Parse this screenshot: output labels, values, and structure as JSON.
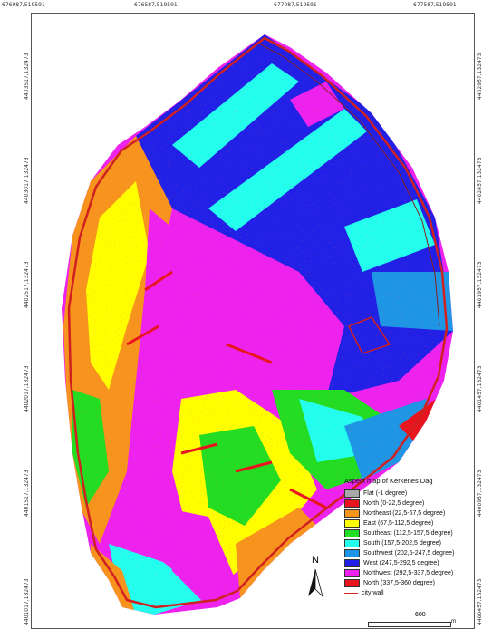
{
  "map": {
    "top_coords": [
      "676987,519591",
      "676587,519591",
      "677087,519591",
      "677587,519591"
    ],
    "left_coords": [
      "4403517,132473",
      "4403017,132473",
      "4402517,132473",
      "4402017,132473",
      "4401517,132473",
      "4401017,132473"
    ],
    "right_coords": [
      "4402957,132473",
      "4402457,132473",
      "4401957,132473",
      "4401457,132473",
      "4400957,132473",
      "4400457,132473"
    ]
  },
  "legend": {
    "title": "Aspect map of Kerkenes Dag",
    "items": [
      {
        "label": "Flat (-1 degree)",
        "color": "#a8a8a8"
      },
      {
        "label": "North (0-22,5 degree)",
        "color": "#e8141e"
      },
      {
        "label": "Northeast (22,5-67,5 degree)",
        "color": "#f7941d"
      },
      {
        "label": "East (67,5-112,5 degree)",
        "color": "#ffff00"
      },
      {
        "label": "Southeast   (112,5-157,5 degree)",
        "color": "#22dd22"
      },
      {
        "label": "South (157,5-202,5 degree)",
        "color": "#22ffee"
      },
      {
        "label": "Southwest (202,5-247,5 degree)",
        "color": "#1e96e6"
      },
      {
        "label": "West (247,5-292,5 degree)",
        "color": "#2020e6"
      },
      {
        "label": "Northwest (292,5-337,5 degree)",
        "color": "#ee22ee"
      },
      {
        "label": "North (337,5-360 degree)",
        "color": "#e8141e"
      }
    ],
    "wall_label": "city wall",
    "wall_color": "#d02020"
  },
  "scale": {
    "value": "600",
    "unit": "m"
  },
  "north": {
    "label": "N"
  }
}
